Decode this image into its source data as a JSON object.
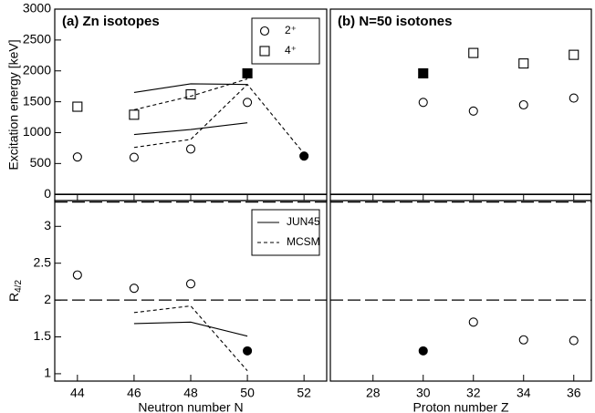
{
  "chart_data": [
    {
      "type": "line",
      "title": "(a) Zn isotopes",
      "ylabel": "Excitation energy [keV]",
      "x": [
        44,
        46,
        48,
        50,
        52
      ],
      "xlim": [
        43.2,
        52.8
      ],
      "xticks": [
        44,
        46,
        48,
        50,
        52
      ],
      "ylim": [
        -100,
        3000
      ],
      "yticks": [
        0,
        500,
        1000,
        1500,
        2000,
        2500,
        3000
      ],
      "legend": "top-right",
      "reference_lines": [
        {
          "value": 0,
          "style": "solid"
        }
      ],
      "series": [
        {
          "name": "2⁺",
          "marker": "circle",
          "filled": false,
          "values": [
            606,
            600,
            735,
            1490,
            null
          ]
        },
        {
          "name": "4⁺",
          "marker": "square",
          "filled": false,
          "values": [
            1420,
            1290,
            1620,
            null,
            null
          ]
        },
        {
          "marker": "circle",
          "filled": true,
          "values": [
            null,
            null,
            null,
            null,
            620
          ]
        },
        {
          "marker": "square",
          "filled": true,
          "values": [
            null,
            null,
            null,
            1960,
            null
          ]
        },
        {
          "line": "solid",
          "values": [
            null,
            970,
            1050,
            1160,
            null
          ]
        },
        {
          "line": "solid",
          "values": [
            null,
            1650,
            1790,
            1780,
            null
          ]
        },
        {
          "line": "dashed",
          "values": [
            null,
            760,
            890,
            1780,
            660
          ]
        },
        {
          "line": "dashed",
          "values": [
            null,
            1370,
            1590,
            1870,
            null
          ]
        }
      ]
    },
    {
      "type": "line",
      "title": "(b) N=50 isotones",
      "x": [
        30,
        32,
        34,
        36
      ],
      "xlim": [
        26.3,
        36.7
      ],
      "xticks": [
        28,
        30,
        32,
        34,
        36
      ],
      "ylim": [
        -100,
        3000
      ],
      "reference_lines": [
        {
          "value": 0,
          "style": "solid"
        }
      ],
      "series": [
        {
          "marker": "circle",
          "filled": false,
          "values": [
            1490,
            1350,
            1450,
            1560
          ]
        },
        {
          "marker": "square",
          "filled": false,
          "values": [
            null,
            2290,
            2120,
            2260
          ]
        },
        {
          "marker": "square",
          "filled": true,
          "values": [
            1960,
            null,
            null,
            null
          ]
        }
      ]
    },
    {
      "type": "line",
      "xlabel": "Neutron number N",
      "ylabel": {
        "main": "R",
        "sub": "4/2"
      },
      "x": [
        44,
        46,
        48,
        50,
        52
      ],
      "xlim": [
        43.2,
        52.8
      ],
      "xticks": [
        44,
        46,
        48,
        50,
        52
      ],
      "ylim": [
        0.9,
        3.35
      ],
      "yticks": [
        1,
        1.5,
        2,
        2.5,
        3
      ],
      "legend": "top-right",
      "reference_lines": [
        {
          "value": 2,
          "style": "dashed"
        },
        {
          "value": 3.33,
          "style": "dashed"
        }
      ],
      "series": [
        {
          "name": "JUN45",
          "line": "solid",
          "values": [
            null,
            1.68,
            1.7,
            1.51,
            null
          ]
        },
        {
          "name": "MCSM",
          "line": "dashed",
          "values": [
            null,
            1.83,
            1.92,
            1.04,
            null
          ]
        },
        {
          "marker": "circle",
          "filled": false,
          "values": [
            2.34,
            2.16,
            2.22,
            null,
            null
          ]
        },
        {
          "marker": "circle",
          "filled": true,
          "values": [
            null,
            null,
            null,
            1.31,
            null
          ]
        }
      ]
    },
    {
      "type": "line",
      "xlabel": "Proton number Z",
      "x": [
        30,
        32,
        34,
        36
      ],
      "xlim": [
        26.3,
        36.7
      ],
      "xticks": [
        28,
        30,
        32,
        34,
        36
      ],
      "ylim": [
        0.9,
        3.35
      ],
      "reference_lines": [
        {
          "value": 2,
          "style": "dashed"
        },
        {
          "value": 3.33,
          "style": "dashed"
        }
      ],
      "series": [
        {
          "marker": "circle",
          "filled": false,
          "values": [
            null,
            1.7,
            1.46,
            1.45
          ]
        },
        {
          "marker": "circle",
          "filled": true,
          "values": [
            1.31,
            null,
            null,
            null
          ]
        }
      ]
    }
  ]
}
